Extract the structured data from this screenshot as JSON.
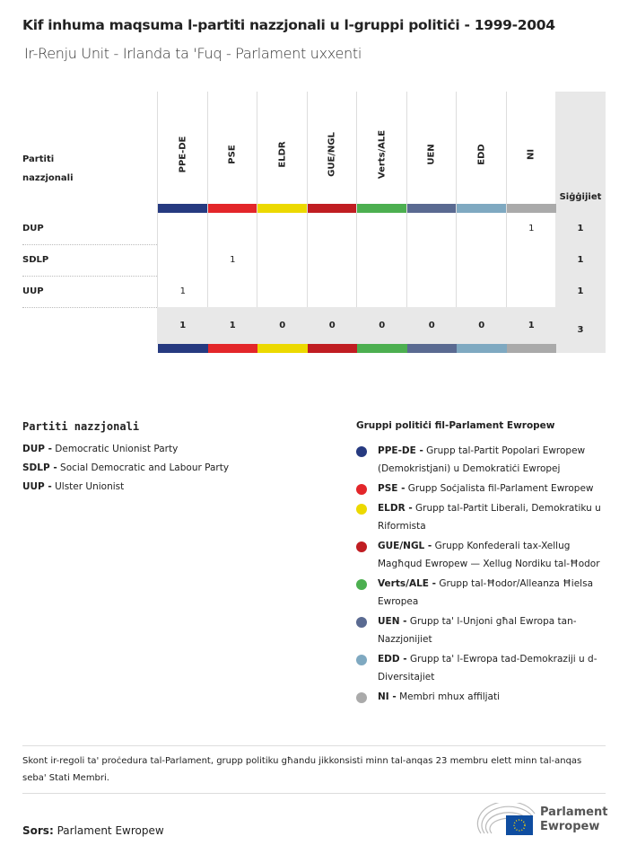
{
  "title": "Kif inhuma maqsuma l-partiti nazzjonali u l-gruppi politiċi - 1999-2004",
  "subtitle": "Ir-Renju Unit - Irlanda ta 'Fuq - Parlament uxxenti",
  "table": {
    "row_header": "Partiti nazzjonali",
    "total_header": "Siġġijiet",
    "groups": [
      {
        "name": "PPE-DE",
        "color": "#263a80"
      },
      {
        "name": "PSE",
        "color": "#e3262a"
      },
      {
        "name": "ELDR",
        "color": "#ecd900"
      },
      {
        "name": "GUE/NGL",
        "color": "#c01d22"
      },
      {
        "name": "Verts/ALE",
        "color": "#4caf50"
      },
      {
        "name": "UEN",
        "color": "#5a6a91"
      },
      {
        "name": "EDD",
        "color": "#7fa9c1"
      },
      {
        "name": "NI",
        "color": "#aaaaaa"
      }
    ],
    "rows": [
      {
        "party": "DUP",
        "values": [
          "",
          "",
          "",
          "",
          "",
          "",
          "",
          "1"
        ],
        "total": "1"
      },
      {
        "party": "SDLP",
        "values": [
          "",
          "1",
          "",
          "",
          "",
          "",
          "",
          ""
        ],
        "total": "1"
      },
      {
        "party": "UUP",
        "values": [
          "1",
          "",
          "",
          "",
          "",
          "",
          "",
          ""
        ],
        "total": "1"
      }
    ],
    "totals": [
      "1",
      "1",
      "0",
      "0",
      "0",
      "0",
      "0",
      "1"
    ],
    "grand_total": "3"
  },
  "legend_parties": {
    "title": "Partiti nazzjonali",
    "items": [
      {
        "abbr": "DUP -",
        "name": "Democratic Unionist Party"
      },
      {
        "abbr": "SDLP -",
        "name": "Social Democratic and Labour Party"
      },
      {
        "abbr": "UUP -",
        "name": "Ulster Unionist"
      }
    ]
  },
  "legend_groups": {
    "title": "Gruppi politiċi fil-Parlament Ewropew",
    "items": [
      {
        "abbr": "PPE-DE -",
        "name": "Grupp tal-Partit Popolari Ewropew (Demokristjani) u Demokratiċi Ewropej"
      },
      {
        "abbr": "PSE -",
        "name": "Grupp Soċjalista fil-Parlament Ewropew"
      },
      {
        "abbr": "ELDR -",
        "name": "Grupp tal-Partit Liberali, Demokratiku u Riformista"
      },
      {
        "abbr": "GUE/NGL -",
        "name": "Grupp Konfederali tax-Xellug Magħqud Ewropew — Xellug Nordiku tal-Ħodor"
      },
      {
        "abbr": "Verts/ALE -",
        "name": "Grupp tal-Ħodor/Alleanza Ħielsa Ewropea"
      },
      {
        "abbr": "UEN -",
        "name": "Grupp ta' l-Unjoni għal Ewropa tan-Nazzjonijiet"
      },
      {
        "abbr": "EDD -",
        "name": "Grupp ta' l-Ewropa tad-Demokraziji u d-Diversitajiet"
      },
      {
        "abbr": "NI -",
        "name": "Membri mhux affiljati"
      }
    ]
  },
  "note": "Skont ir-regoli ta' proċedura tal-Parlament, grupp politiku għandu jikkonsisti minn tal-anqas 23 membru elett minn tal-anqas seba' Stati Membri.",
  "source_label": "Sors:",
  "source": "Parlament Ewropew",
  "logo": {
    "line1": "Parlament",
    "line2": "Ewropew"
  }
}
